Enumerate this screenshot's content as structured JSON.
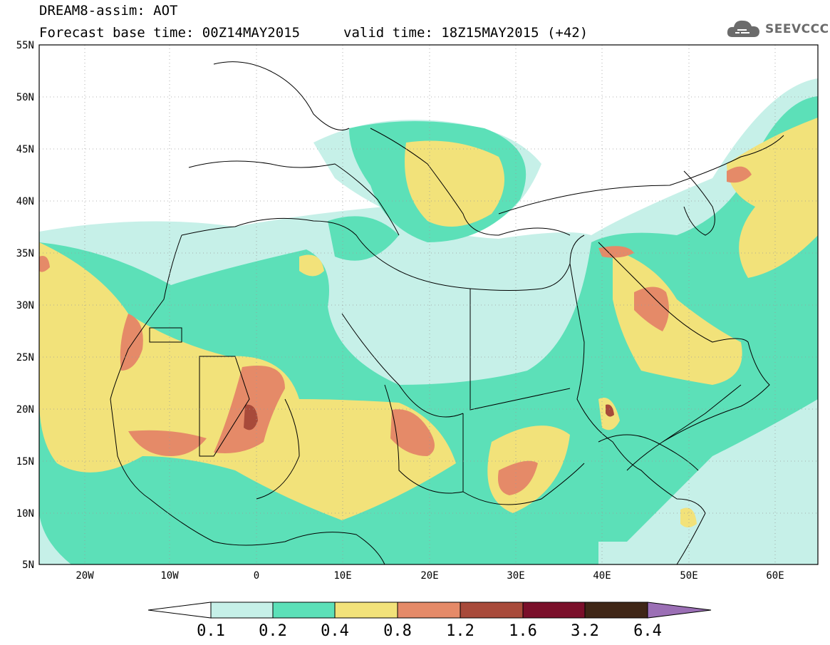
{
  "header": {
    "model_title": "DREAM8-assim: AOT",
    "base_time": "Forecast base time: 00Z14MAY2015",
    "valid_time": "valid time: 18Z15MAY2015 (+42)"
  },
  "logo": {
    "text": "SEEVCCC",
    "icon": "cloud-icon"
  },
  "map": {
    "lon_range": [
      -25,
      65
    ],
    "lat_range": [
      5,
      55
    ],
    "lat_labels": [
      "55N",
      "50N",
      "45N",
      "40N",
      "35N",
      "30N",
      "25N",
      "20N",
      "15N",
      "10N",
      "5N"
    ],
    "lon_labels": [
      "20W",
      "10W",
      "0",
      "10E",
      "20E",
      "30E",
      "40E",
      "50E",
      "60E"
    ]
  },
  "colorbar": {
    "ticks": [
      "0.1",
      "0.2",
      "0.4",
      "0.8",
      "1.2",
      "1.6",
      "3.2",
      "6.4"
    ],
    "colors": [
      "#ffffff",
      "#c6f0e8",
      "#5ce0b8",
      "#f2e27a",
      "#e58a68",
      "#a84a3a",
      "#7a0f2a",
      "#3f2616",
      "#9b6fb5"
    ]
  }
}
